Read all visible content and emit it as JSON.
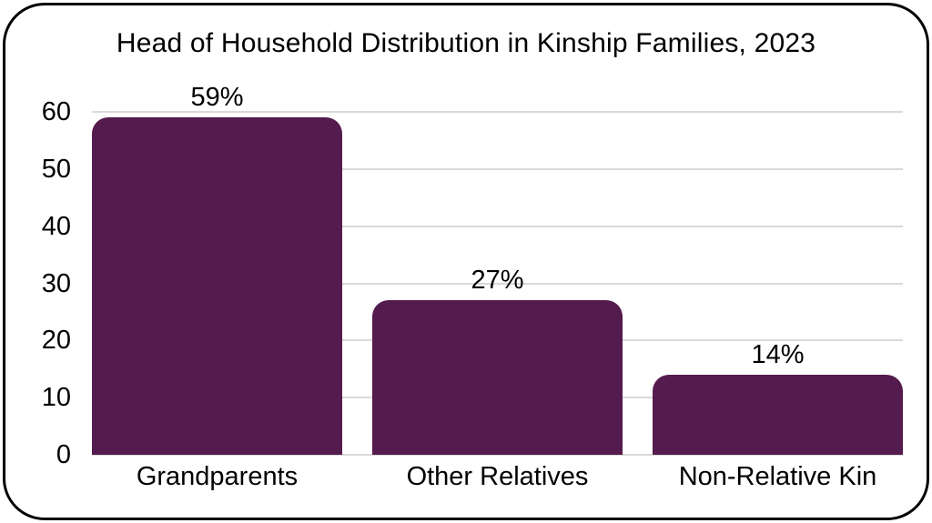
{
  "chart_data": {
    "type": "bar",
    "title": "Head of Household Distribution in Kinship Families, 2023",
    "categories": [
      "Grandparents",
      "Other Relatives",
      "Non-Relative Kin"
    ],
    "values": [
      59,
      27,
      14
    ],
    "value_labels": [
      "59%",
      "27%",
      "14%"
    ],
    "xlabel": "",
    "ylabel": "",
    "ylim": [
      0,
      60
    ],
    "yticks": [
      0,
      10,
      20,
      30,
      40,
      50,
      60
    ],
    "grid": "horizontal",
    "legend": "none",
    "bar_color": "#541B4E",
    "gridline_color": "#D9D9D9",
    "frame_border_color": "#000000",
    "background_color": "#FFFFFF",
    "text_color": "#000000"
  }
}
